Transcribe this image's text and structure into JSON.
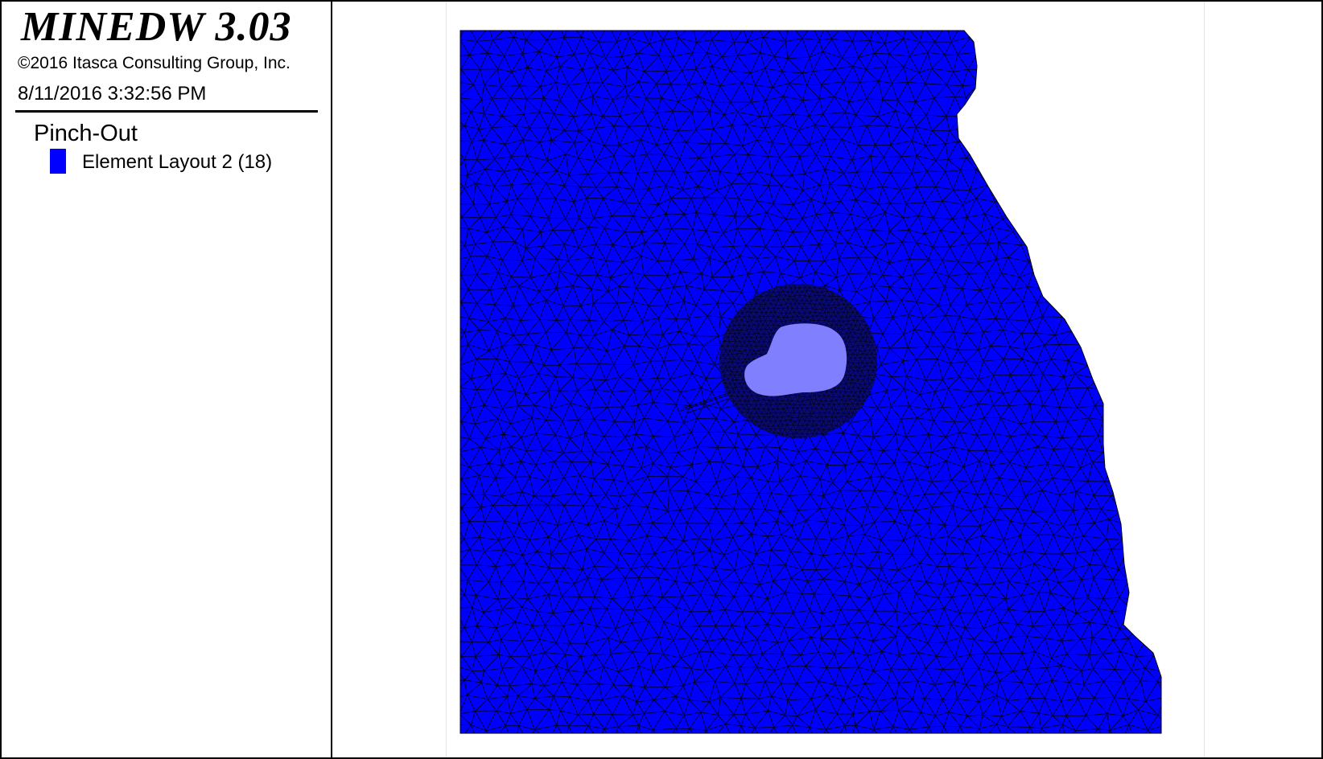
{
  "app": {
    "title": "MINEDW 3.03",
    "copyright": "©2016 Itasca Consulting Group, Inc.",
    "timestamp": "8/11/2016 3:32:56 PM"
  },
  "legend": {
    "heading": "Pinch-Out",
    "items": [
      {
        "label": "Element Layout 2 (18)",
        "color": "#0000ff"
      }
    ]
  },
  "map": {
    "mesh_fill": "#0000ff",
    "mesh_line": "#000000",
    "pinch_out_fill": "#8080ff"
  }
}
